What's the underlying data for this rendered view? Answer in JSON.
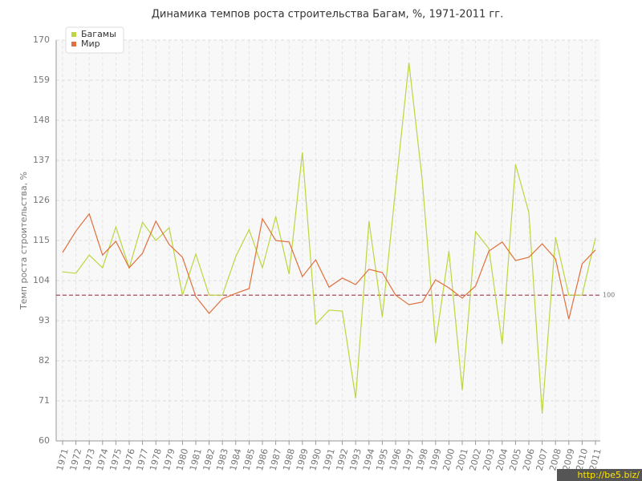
{
  "chart_data": {
    "type": "line",
    "title": "Динамика темпов роста строительства Багам, %, 1971-2011 гг.",
    "y_label": "Темп роста строительства, %",
    "categories": [
      "1971",
      "1972",
      "1973",
      "1974",
      "1975",
      "1976",
      "1977",
      "1978",
      "1979",
      "1980",
      "1981",
      "1982",
      "1983",
      "1984",
      "1985",
      "1986",
      "1987",
      "1988",
      "1989",
      "1990",
      "1991",
      "1992",
      "1993",
      "1994",
      "1995",
      "1996",
      "1997",
      "1998",
      "1999",
      "2000",
      "2001",
      "2002",
      "2003",
      "2004",
      "2005",
      "2006",
      "2007",
      "2008",
      "2009",
      "2010",
      "2011"
    ],
    "series": [
      {
        "name": "Багамы",
        "color": "#bcd63f",
        "values": [
          106.4,
          106,
          111,
          107.5,
          118.7,
          107.5,
          120,
          115,
          118.5,
          100,
          111.3,
          100,
          100,
          110.6,
          118,
          107.5,
          121.6,
          105.8,
          139.2,
          92,
          95.9,
          95.6,
          71.7,
          120.3,
          94,
          129.3,
          163.8,
          131.5,
          86.8,
          112.1,
          73.9,
          117.4,
          112.8,
          86.6,
          135.9,
          122.7,
          67.5,
          115.9,
          100,
          100,
          115.7
        ]
      },
      {
        "name": "Мир",
        "color": "#e0703d",
        "values": [
          111.7,
          117.6,
          122.3,
          111,
          114.8,
          107.5,
          111.5,
          120.3,
          113.9,
          110.4,
          99.6,
          95,
          99,
          100.5,
          101.8,
          121,
          115,
          114.6,
          105.1,
          109.7,
          102.2,
          104.7,
          102.9,
          107.1,
          106.2,
          100,
          97.4,
          98.1,
          104.2,
          102,
          99.2,
          102.5,
          112.1,
          114.6,
          109.5,
          110.4,
          114.1,
          110,
          93.4,
          108.6,
          112.4
        ]
      }
    ],
    "ylim": [
      60,
      170
    ],
    "yticks": [
      60,
      71,
      82,
      93,
      104,
      115,
      126,
      137,
      148,
      159,
      170
    ],
    "grid": true,
    "legend": "top-left",
    "reference_line": {
      "value": 100,
      "label": "100",
      "color": "#9b3a4a"
    },
    "watermark": "http://be5.biz/"
  }
}
